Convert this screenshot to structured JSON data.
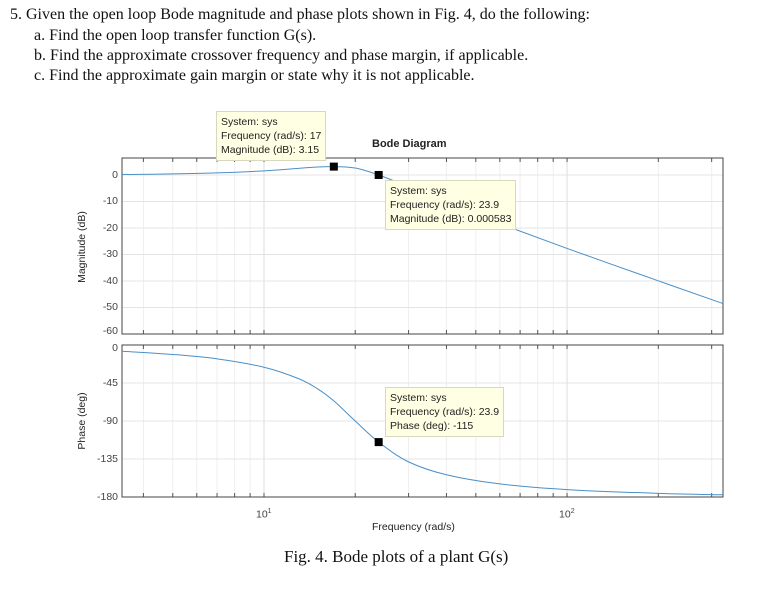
{
  "question": {
    "stem": "5.  Given the open loop Bode magnitude and phase plots shown in Fig. 4, do the following:",
    "items": [
      "a.  Find the open loop transfer function G(s).",
      "b.  Find the approximate crossover frequency and phase margin, if applicable.",
      "c.  Find the approximate gain margin or state why it is not applicable."
    ]
  },
  "caption": "Fig. 4.  Bode plots of a plant G(s)",
  "chart_data": [
    {
      "type": "line",
      "title": "Bode Diagram",
      "xlabel": "Frequency  (rad/s)",
      "ylabel": "Magnitude (dB)",
      "xscale": "log",
      "xlim": [
        3.4,
        327
      ],
      "ylim": [
        -60,
        6.4
      ],
      "yticks": [
        0,
        -10,
        -20,
        -30,
        -40,
        -50,
        -60
      ],
      "xticks": [
        {
          "value": 10,
          "base": "10",
          "exp": "1"
        },
        {
          "value": 100,
          "base": "10",
          "exp": "2"
        }
      ],
      "grid": true,
      "color": "#4a90c8",
      "x": [
        3.4,
        5,
        7,
        10,
        13,
        15,
        17,
        20,
        23.9,
        30,
        40,
        60,
        100,
        200,
        327
      ],
      "y": [
        0.18,
        0.39,
        0.77,
        1.55,
        2.48,
        3.02,
        3.15,
        2.62,
        0.0006,
        -4.46,
        -10.49,
        -18.38,
        -27.71,
        -39.94,
        -48.52
      ],
      "datatips": [
        {
          "x": 17,
          "y": 3.15,
          "lines": [
            "System: sys",
            "Frequency (rad/s): 17",
            "Magnitude (dB): 3.15"
          ]
        },
        {
          "x": 23.9,
          "y": 0.000583,
          "lines": [
            "System: sys",
            "Frequency (rad/s): 23.9",
            "Magnitude (dB): 0.000583"
          ]
        }
      ]
    },
    {
      "type": "line",
      "xlabel": "Frequency  (rad/s)",
      "ylabel": "Phase (deg)",
      "xscale": "log",
      "xlim": [
        3.4,
        327
      ],
      "ylim": [
        -180,
        0
      ],
      "yticks": [
        0,
        -45,
        -90,
        -135,
        -180
      ],
      "grid": true,
      "color": "#4a90c8",
      "x": [
        3.4,
        5,
        7,
        10,
        13,
        15,
        17,
        20,
        23.9,
        30,
        40,
        60,
        100,
        200,
        327
      ],
      "y": [
        -7.4,
        -11.2,
        -16.4,
        -26.3,
        -39.8,
        -51.7,
        -66.2,
        -90,
        -115,
        -138.4,
        -153.7,
        -164.5,
        -171.2,
        -175.7,
        -177.4
      ],
      "datatips": [
        {
          "x": 23.9,
          "y": -115,
          "lines": [
            "System: sys",
            "Frequency (rad/s): 23.9",
            "Phase (deg): -115"
          ]
        }
      ]
    }
  ]
}
